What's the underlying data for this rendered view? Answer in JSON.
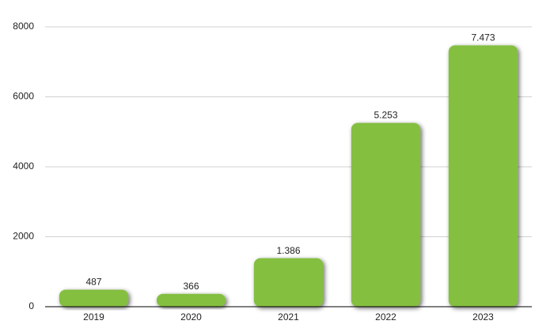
{
  "chart_data": {
    "type": "bar",
    "categories": [
      "2019",
      "2020",
      "2021",
      "2022",
      "2023"
    ],
    "values": [
      487,
      366,
      1386,
      5253,
      7473
    ],
    "value_labels": [
      "487",
      "366",
      "1.386",
      "5.253",
      "7.473"
    ],
    "color": "#84bf41",
    "ylim": [
      0,
      8000
    ],
    "yticks": [
      0,
      2000,
      4000,
      6000,
      8000
    ],
    "grid": true
  }
}
